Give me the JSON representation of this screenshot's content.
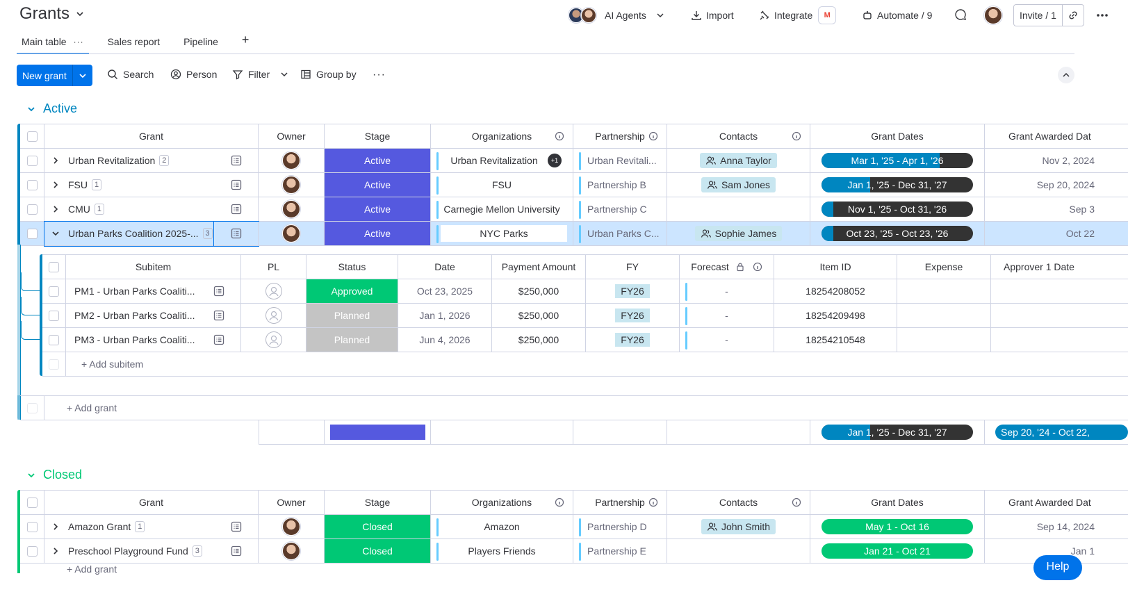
{
  "header": {
    "title": "Grants",
    "ai_agents": "AI Agents",
    "import": "Import",
    "integrate": "Integrate",
    "integrate_badge": "M",
    "automate": "Automate / 9",
    "invite": "Invite / 1"
  },
  "tabs": [
    {
      "label": "Main table",
      "more": "···"
    },
    {
      "label": "Sales report"
    },
    {
      "label": "Pipeline"
    },
    {
      "label": "+"
    }
  ],
  "toolbar": {
    "new_item": "New grant",
    "search": "Search",
    "person": "Person",
    "filter": "Filter",
    "group_by": "Group by",
    "more": "···"
  },
  "colors": {
    "accent": "#0073ea",
    "active_group": "#0086c0",
    "closed_group": "#00c875",
    "stage_active": "#5559df",
    "stage_closed": "#00c875",
    "approved": "#00c875",
    "planned": "#c4c4c4",
    "date_fill": "#0086c0",
    "date_dark": "#333333",
    "selected_row": "#cce5ff"
  },
  "columns": {
    "grant": "Grant",
    "owner": "Owner",
    "stage": "Stage",
    "organizations": "Organizations",
    "partnership": "Partnership",
    "contacts": "Contacts",
    "grant_dates": "Grant Dates",
    "grant_awarded": "Grant Awarded Dat"
  },
  "active": {
    "title": "Active",
    "rows": [
      {
        "name": "Urban Revitalization",
        "count": "2",
        "stage": "Active",
        "org": "Urban Revitalization",
        "org_extra": "+1",
        "partnership": "Urban Revitali...",
        "contact": "Anna Taylor",
        "dates": "Mar 1, '25 - Apr 1, '26",
        "date_progress": 0.78,
        "awarded": "Nov 2, 2024"
      },
      {
        "name": "FSU",
        "count": "1",
        "stage": "Active",
        "org": "FSU",
        "org_extra": "",
        "partnership": "Partnership B",
        "contact": "Sam Jones",
        "dates": "Jan 1, '25 - Dec 31, '27",
        "date_progress": 0.32,
        "awarded": "Sep 20, 2024"
      },
      {
        "name": "CMU",
        "count": "1",
        "stage": "Active",
        "org": "Carnegie Mellon University",
        "org_extra": "",
        "partnership": "Partnership C",
        "contact": "",
        "dates": "Nov 1, '25 - Oct 31, '26",
        "date_progress": 0.08,
        "awarded": "Sep 3"
      },
      {
        "name": "Urban Parks Coalition 2025-...",
        "count": "3",
        "stage": "Active",
        "org": "NYC Parks",
        "org_extra": "",
        "partnership": "Urban Parks C...",
        "contact": "Sophie James",
        "dates": "Oct 23, '25 - Oct 23, '26",
        "date_progress": 0.08,
        "awarded": "Oct 22"
      }
    ],
    "subitems": {
      "columns": {
        "subitem": "Subitem",
        "pl": "PL",
        "status": "Status",
        "date": "Date",
        "payment": "Payment Amount",
        "fy": "FY",
        "forecast": "Forecast",
        "item_id": "Item ID",
        "expense": "Expense",
        "approver": "Approver 1 Date"
      },
      "rows": [
        {
          "name": "PM1 - Urban Parks Coaliti...",
          "status": "Approved",
          "date": "Oct 23, 2025",
          "payment": "$250,000",
          "fy": "FY26",
          "forecast": "-",
          "item_id": "18254208052"
        },
        {
          "name": "PM2 - Urban Parks Coaliti...",
          "status": "Planned",
          "date": "Jan 1, 2026",
          "payment": "$250,000",
          "fy": "FY26",
          "forecast": "-",
          "item_id": "18254209498"
        },
        {
          "name": "PM3 - Urban Parks Coaliti...",
          "status": "Planned",
          "date": "Jun 4, 2026",
          "payment": "$250,000",
          "fy": "FY26",
          "forecast": "-",
          "item_id": "18254210548"
        }
      ],
      "add": "+ Add subitem"
    },
    "add": "+ Add grant",
    "summary": {
      "dates": "Jan 1, '25 - Dec 31, '27",
      "dates_progress": 0.32,
      "awarded": "Sep 20, '24 - Oct 22,"
    }
  },
  "closed": {
    "title": "Closed",
    "rows": [
      {
        "name": "Amazon Grant",
        "count": "1",
        "stage": "Closed",
        "org": "Amazon",
        "partnership": "Partnership D",
        "contact": "John Smith",
        "dates": "May 1 - Oct 16",
        "awarded": "Sep 14, 2024"
      },
      {
        "name": "Preschool Playground Fund",
        "count": "3",
        "stage": "Closed",
        "org": "Players Friends",
        "partnership": "Partnership E",
        "contact": "",
        "dates": "Jan 21 - Oct 21",
        "awarded": "Jan 1"
      }
    ],
    "add": "+ Add grant"
  },
  "help": "Help"
}
